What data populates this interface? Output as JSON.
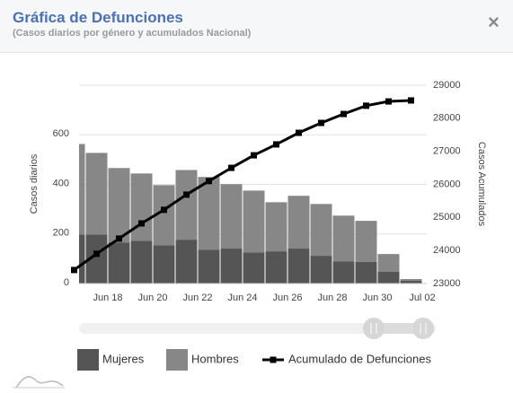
{
  "header": {
    "title": "Gráfica de Defunciones",
    "subtitle": "(Casos diarios por género y acumulados Nacional)",
    "close": "×"
  },
  "chart_data": {
    "type": "bar",
    "stacked": true,
    "y_label": "Casos diarios",
    "y2_label": "Casos Acumulados",
    "x": [
      16,
      17,
      18,
      19,
      20,
      21,
      22,
      23,
      24,
      25,
      26,
      27,
      28,
      29,
      30,
      31
    ],
    "xlim": [
      16.72,
      32
    ],
    "xticks": [
      {
        "value": 18,
        "label": "Jun 18"
      },
      {
        "value": 20,
        "label": "Jun 20"
      },
      {
        "value": 22,
        "label": "Jun 22"
      },
      {
        "value": 24,
        "label": "Jun 24"
      },
      {
        "value": 26,
        "label": "Jun 26"
      },
      {
        "value": 28,
        "label": "Jun 28"
      },
      {
        "value": 30,
        "label": "Jun 30"
      },
      {
        "value": 32,
        "label": "Jul 02"
      }
    ],
    "ylim": [
      0,
      800
    ],
    "yticks": [
      0,
      200,
      400,
      600
    ],
    "y2lim": [
      23000,
      29000
    ],
    "y2ticks": [
      23000,
      24000,
      25000,
      26000,
      27000,
      28000,
      29000
    ],
    "grid": true,
    "series": [
      {
        "name": "Mujeres",
        "color": "#555555",
        "type": "bar",
        "values": [
          198,
          198,
          166,
          173,
          155,
          177,
          137,
          141,
          126,
          130,
          141,
          112,
          90,
          87,
          47,
          11
        ]
      },
      {
        "name": "Hombres",
        "color": "#878787",
        "type": "bar",
        "values": [
          365,
          329,
          300,
          271,
          242,
          281,
          293,
          260,
          249,
          198,
          213,
          209,
          184,
          166,
          72,
          7
        ]
      },
      {
        "name": "Acumulado de Defunciones",
        "color": "#000000",
        "type": "line",
        "axis": "y2",
        "values": [
          23410,
          23900,
          24360,
          24820,
          25230,
          25690,
          26100,
          26500,
          26880,
          27210,
          27560,
          27860,
          28130,
          28380,
          28510,
          28540
        ]
      }
    ]
  }
}
